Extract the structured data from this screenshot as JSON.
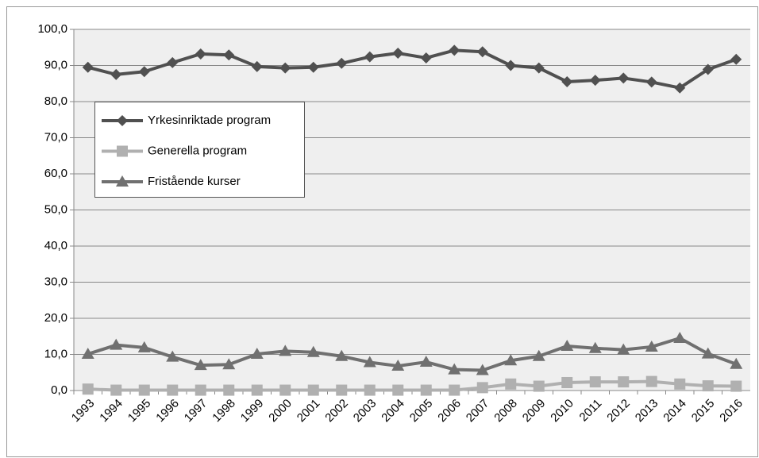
{
  "chart_data": {
    "type": "line",
    "categories": [
      "1993",
      "1994",
      "1995",
      "1996",
      "1997",
      "1998",
      "1999",
      "2000",
      "2001",
      "2002",
      "2003",
      "2004",
      "2005",
      "2006",
      "2007",
      "2008",
      "2009",
      "2010",
      "2011",
      "2012",
      "2013",
      "2014",
      "2015",
      "2016"
    ],
    "series": [
      {
        "name": "Yrkesinriktade program",
        "color": "#505050",
        "marker": "diamond",
        "values": [
          89.5,
          87.5,
          88.3,
          90.8,
          93.2,
          92.9,
          89.7,
          89.3,
          89.5,
          90.6,
          92.4,
          93.4,
          92.1,
          94.2,
          93.8,
          90.0,
          89.3,
          85.5,
          85.9,
          86.5,
          85.4,
          83.8,
          88.9,
          91.7
        ]
      },
      {
        "name": "Generella program",
        "color": "#b0b0b0",
        "marker": "square",
        "values": [
          0.4,
          0.1,
          0.1,
          0.1,
          0.1,
          0.1,
          0.1,
          0.1,
          0.1,
          0.1,
          0.1,
          0.1,
          0.1,
          0.1,
          0.8,
          1.8,
          1.2,
          2.2,
          2.4,
          2.4,
          2.5,
          1.8,
          1.3,
          1.2
        ]
      },
      {
        "name": "Fristående kurser",
        "color": "#707070",
        "marker": "triangle",
        "values": [
          10.1,
          12.6,
          11.9,
          9.3,
          7.0,
          7.2,
          10.1,
          10.9,
          10.6,
          9.5,
          7.8,
          6.8,
          7.9,
          5.8,
          5.6,
          8.3,
          9.5,
          12.3,
          11.7,
          11.3,
          12.1,
          14.5,
          10.2,
          7.3
        ]
      }
    ],
    "ylim": [
      0,
      100
    ],
    "yticks": [
      {
        "value": 0,
        "label": "0,0"
      },
      {
        "value": 10,
        "label": "10,0"
      },
      {
        "value": 20,
        "label": "20,0"
      },
      {
        "value": 30,
        "label": "30,0"
      },
      {
        "value": 40,
        "label": "40,0"
      },
      {
        "value": 50,
        "label": "50,0"
      },
      {
        "value": 60,
        "label": "60,0"
      },
      {
        "value": 70,
        "label": "70,0"
      },
      {
        "value": 80,
        "label": "80,0"
      },
      {
        "value": 90,
        "label": "90,0"
      },
      {
        "value": 100,
        "label": "100,0"
      }
    ],
    "grid": true
  }
}
